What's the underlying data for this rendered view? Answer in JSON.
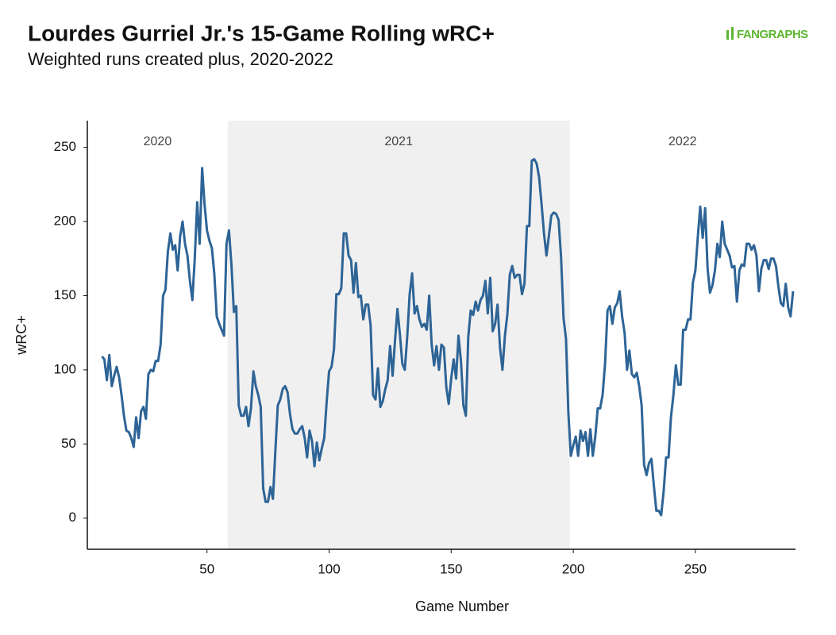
{
  "chart_data": {
    "type": "line",
    "title": "Lourdes Gurriel Jr.'s 15-Game Rolling wRC+",
    "subtitle": "Weighted runs created plus, 2020-2022",
    "logo": "FANGRAPHS",
    "x_label": "Game Number",
    "y_label": "wRC+",
    "xlim": [
      1,
      291
    ],
    "ylim": [
      -21,
      268
    ],
    "xticks": [
      50,
      100,
      150,
      200,
      250
    ],
    "yticks": [
      0,
      50,
      100,
      150,
      200,
      250
    ],
    "periods": [
      {
        "label": "2020",
        "start": 1,
        "end": 58.5,
        "shaded": false
      },
      {
        "label": "2021",
        "start": 58.5,
        "end": 198.5,
        "shaded": true
      },
      {
        "label": "2022",
        "start": 198.5,
        "end": 291,
        "shaded": false
      }
    ],
    "shade_color": "#f0f0f0",
    "series": [
      {
        "name": "wRC+",
        "color": "#2e6496",
        "x": [
          7,
          8,
          9,
          10,
          11,
          12,
          13,
          14,
          15,
          16,
          17,
          18,
          19,
          20,
          21,
          22,
          23,
          24,
          25,
          26,
          27,
          28,
          29,
          30,
          31,
          32,
          33,
          34,
          35,
          36,
          37,
          38,
          39,
          40,
          41,
          42,
          43,
          44,
          45,
          46,
          47,
          48,
          49,
          50,
          51,
          52,
          53,
          54,
          55,
          56,
          57,
          58,
          59,
          60,
          61,
          62,
          63,
          64,
          65,
          66,
          67,
          68,
          69,
          70,
          71,
          72,
          73,
          74,
          75,
          76,
          77,
          78,
          79,
          80,
          81,
          82,
          83,
          84,
          85,
          86,
          87,
          88,
          89,
          90,
          91,
          92,
          93,
          94,
          95,
          96,
          97,
          98,
          99,
          100,
          101,
          102,
          103,
          104,
          105,
          106,
          107,
          108,
          109,
          110,
          111,
          112,
          113,
          114,
          115,
          116,
          117,
          118,
          119,
          120,
          121,
          122,
          123,
          124,
          125,
          126,
          127,
          128,
          129,
          130,
          131,
          132,
          133,
          134,
          135,
          136,
          137,
          138,
          139,
          140,
          141,
          142,
          143,
          144,
          145,
          146,
          147,
          148,
          149,
          150,
          151,
          152,
          153,
          154,
          155,
          156,
          157,
          158,
          159,
          160,
          161,
          162,
          163,
          164,
          165,
          166,
          167,
          168,
          169,
          170,
          171,
          172,
          173,
          174,
          175,
          176,
          177,
          178,
          179,
          180,
          181,
          182,
          183,
          184,
          185,
          186,
          187,
          188,
          189,
          190,
          191,
          192,
          193,
          194,
          195,
          196,
          197,
          198,
          199,
          200,
          201,
          202,
          203,
          204,
          205,
          206,
          207,
          208,
          209,
          210,
          211,
          212,
          213,
          214,
          215,
          216,
          217,
          218,
          219,
          220,
          221,
          222,
          223,
          224,
          225,
          226,
          227,
          228,
          229,
          230,
          231,
          232,
          233,
          234,
          235,
          236,
          237,
          238,
          239,
          240,
          241,
          242,
          243,
          244,
          245,
          246,
          247,
          248,
          249,
          250,
          251,
          252,
          253,
          254,
          255,
          256,
          257,
          258,
          259,
          260,
          261,
          262,
          263,
          264,
          265,
          266,
          267,
          268,
          269,
          270,
          271,
          272,
          273,
          274,
          275,
          276,
          277,
          278,
          279,
          280,
          281,
          282,
          283,
          284,
          285,
          286,
          287,
          288,
          289,
          290
        ],
        "values": [
          109,
          107,
          93,
          110,
          89,
          96,
          102,
          95,
          83,
          69,
          59,
          58,
          54,
          48,
          68,
          54,
          72,
          75,
          67,
          97,
          100,
          99,
          106,
          106,
          117,
          150,
          154,
          180,
          192,
          181,
          184,
          167,
          190,
          200,
          185,
          177,
          160,
          147,
          175,
          213,
          185,
          236,
          212,
          194,
          187,
          182,
          165,
          136,
          131,
          127,
          123,
          185,
          194,
          171,
          139,
          143,
          76,
          69,
          69,
          75,
          62,
          74,
          99,
          89,
          83,
          75,
          20,
          11,
          11,
          21,
          13,
          45,
          76,
          80,
          87,
          89,
          85,
          70,
          60,
          57,
          57,
          60,
          62,
          54,
          41,
          59,
          52,
          35,
          51,
          39,
          47,
          54,
          78,
          99,
          102,
          114,
          151,
          151,
          155,
          192,
          192,
          177,
          174,
          152,
          172,
          149,
          150,
          134,
          144,
          144,
          130,
          83,
          80,
          101,
          75,
          79,
          87,
          93,
          116,
          96,
          120,
          141,
          124,
          104,
          100,
          122,
          151,
          165,
          138,
          143,
          134,
          129,
          131,
          127,
          150,
          117,
          103,
          116,
          100,
          117,
          115,
          88,
          77,
          94,
          107,
          94,
          123,
          106,
          76,
          69,
          122,
          140,
          137,
          146,
          140,
          147,
          150,
          160,
          138,
          162,
          126,
          131,
          144,
          115,
          100,
          123,
          137,
          164,
          170,
          162,
          164,
          164,
          151,
          158,
          197,
          197,
          241,
          242,
          239,
          230,
          212,
          192,
          177,
          190,
          204,
          206,
          205,
          201,
          176,
          135,
          121,
          71,
          42,
          49,
          55,
          42,
          59,
          52,
          58,
          42,
          60,
          42,
          55,
          74,
          74,
          83,
          104,
          140,
          143,
          131,
          142,
          145,
          153,
          136,
          125,
          100,
          113,
          97,
          95,
          98,
          89,
          76,
          36,
          29,
          37,
          40,
          22,
          5,
          5,
          2,
          18,
          41,
          41,
          68,
          83,
          103,
          90,
          90,
          127,
          127,
          134,
          134,
          159,
          167,
          190,
          210,
          189,
          209,
          168,
          152,
          157,
          167,
          185,
          176,
          200,
          185,
          181,
          177,
          169,
          170,
          146,
          167,
          171,
          170,
          185,
          185,
          181,
          184,
          177,
          153,
          168,
          174,
          174,
          168,
          175,
          175,
          170,
          156,
          145,
          143,
          158,
          142,
          136,
          153
        ]
      }
    ]
  }
}
